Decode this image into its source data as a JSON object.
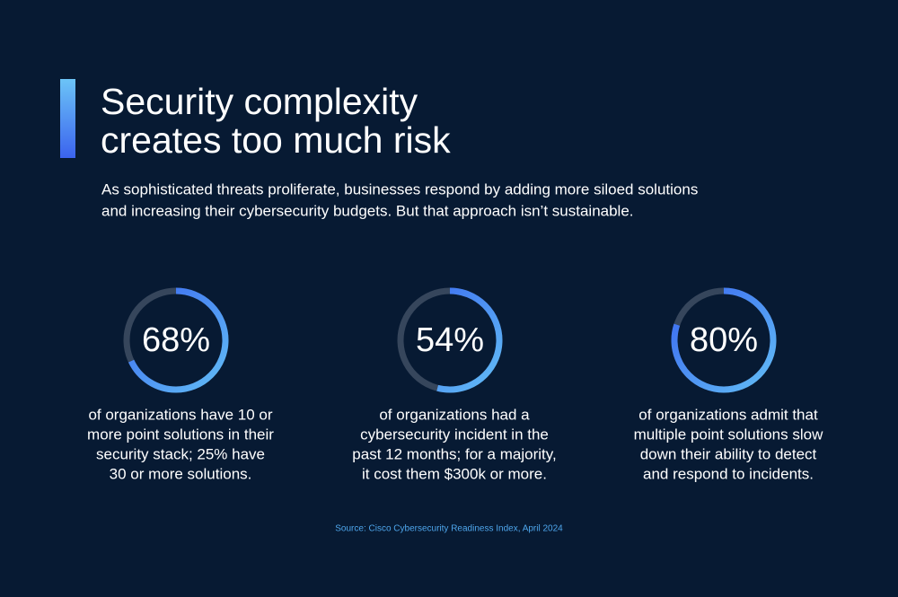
{
  "header": {
    "title_lines": [
      "Security complexity",
      "creates too much risk"
    ],
    "subtitle_lines": [
      "As sophisticated threats proliferate, businesses respond by adding more siloed solutions",
      "and increasing their cybersecurity budgets. But that approach isn’t sustainable."
    ]
  },
  "stats": {
    "lim": [
      0,
      100
    ],
    "items": [
      {
        "value": 68,
        "value_label": "68%",
        "text_lines": [
          "of organizations have 10 or",
          "more point solutions in their",
          "security stack; 25% have",
          "30 or more solutions."
        ]
      },
      {
        "value": 54,
        "value_label": "54%",
        "text_lines": [
          "of organizations had a",
          "cybersecurity incident in the",
          "past 12 months; for a majority,",
          "it cost them $300k or more."
        ]
      },
      {
        "value": 80,
        "value_label": "80%",
        "text_lines": [
          "of organizations admit that",
          "multiple point solutions slow",
          "down their ability to detect",
          "and respond to incidents."
        ]
      }
    ]
  },
  "source": "Source: Cisco Cybersecurity Readiness Index, April 2024"
}
